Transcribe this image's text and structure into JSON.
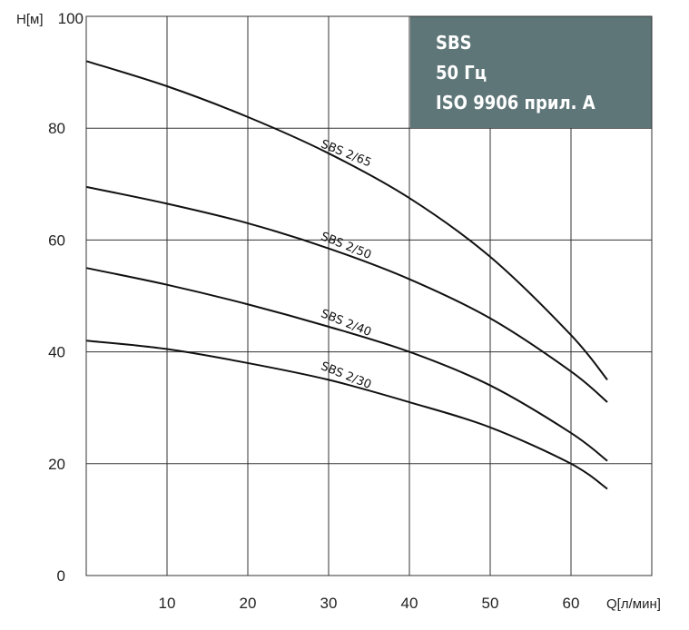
{
  "chart_data": {
    "type": "line",
    "xlabel": "Q[л/мин]",
    "ylabel": "H[м]",
    "xlim": [
      0,
      70
    ],
    "ylim": [
      0,
      100
    ],
    "x_ticks": [
      10,
      20,
      30,
      40,
      50,
      60
    ],
    "y_ticks": [
      0,
      20,
      40,
      60,
      80,
      100
    ],
    "grid": true,
    "info_box": {
      "lines": [
        "SBS",
        "50 Гц",
        "ISO 9906 прил. A"
      ],
      "background": "#5e7678",
      "text_color": "#ffffff"
    },
    "series": [
      {
        "name": "SBS 2/65",
        "x": [
          0,
          10,
          20,
          30,
          40,
          50,
          60,
          64.5
        ],
        "y": [
          92,
          87.5,
          82,
          75.5,
          67.5,
          57,
          43,
          35
        ]
      },
      {
        "name": "SBS 2/50",
        "x": [
          0,
          10,
          20,
          30,
          40,
          50,
          60,
          64.5
        ],
        "y": [
          69.5,
          66.5,
          63,
          58.5,
          53,
          46,
          36.5,
          31
        ]
      },
      {
        "name": "SBS 2/40",
        "x": [
          0,
          10,
          20,
          30,
          40,
          50,
          60,
          64.5
        ],
        "y": [
          55,
          52,
          48.5,
          44.5,
          40,
          34,
          25.5,
          20.5
        ]
      },
      {
        "name": "SBS 2/30",
        "x": [
          0,
          10,
          20,
          30,
          40,
          50,
          60,
          64.5
        ],
        "y": [
          42,
          40.5,
          38,
          35,
          31,
          26.5,
          20,
          15.5
        ]
      }
    ],
    "line_color": "#111111"
  }
}
